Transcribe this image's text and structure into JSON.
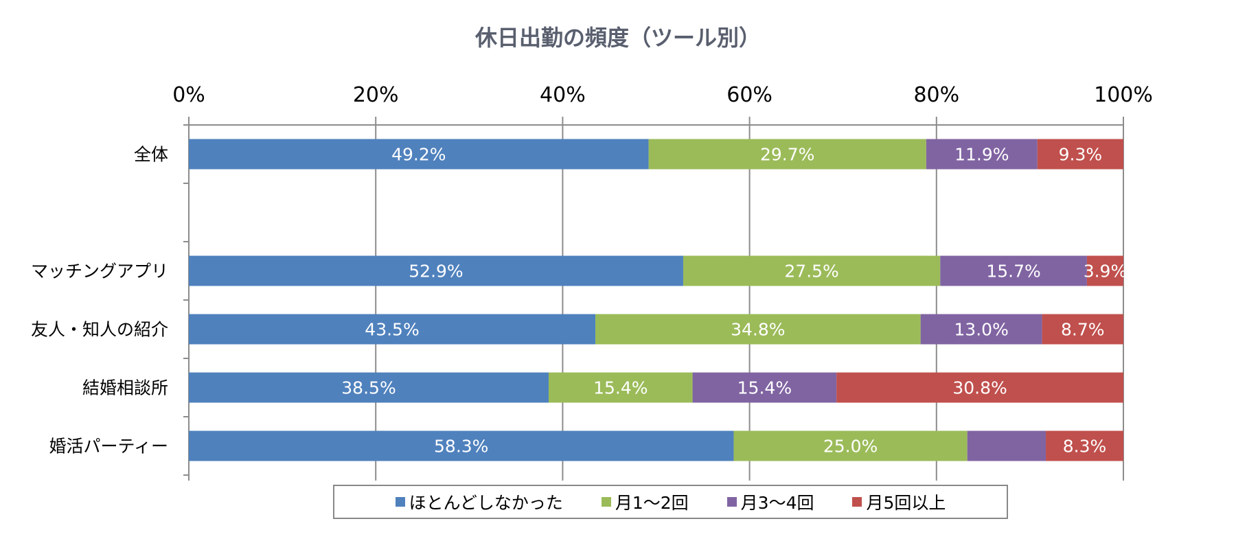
{
  "chart_data": {
    "type": "bar",
    "orientation": "horizontal",
    "stacked": "percent",
    "title": "休日出勤の頻度（ツール別）",
    "categories": [
      "全体",
      "",
      "マッチングアプリ",
      "友人・知人の紹介",
      "結婚相談所",
      "婚活パーティー"
    ],
    "xlim": [
      0,
      100
    ],
    "xticks": [
      "0%",
      "20%",
      "40%",
      "60%",
      "80%",
      "100%"
    ],
    "grid": true,
    "legend_position": "bottom",
    "series": [
      {
        "name": "ほとんどしなかった",
        "color": "#4f81bd",
        "values": [
          49.2,
          null,
          52.9,
          43.5,
          38.5,
          58.3
        ],
        "labels": [
          "49.2%",
          "",
          "52.9%",
          "43.5%",
          "38.5%",
          "58.3%"
        ]
      },
      {
        "name": "月1～2回",
        "color": "#9bbb59",
        "values": [
          29.7,
          null,
          27.5,
          34.8,
          15.4,
          25.0
        ],
        "labels": [
          "29.7%",
          "",
          "27.5%",
          "34.8%",
          "15.4%",
          "25.0%"
        ]
      },
      {
        "name": "月3～4回",
        "color": "#8064a2",
        "values": [
          11.9,
          null,
          15.7,
          13.0,
          15.4,
          8.4
        ],
        "labels": [
          "11.9%",
          "",
          "15.7%",
          "13.0%",
          "15.4%",
          ""
        ]
      },
      {
        "name": "月5回以上",
        "color": "#c0504d",
        "values": [
          9.3,
          null,
          3.9,
          8.7,
          30.8,
          8.3
        ],
        "labels": [
          "9.3%",
          "",
          "3.9%",
          "8.7%",
          "30.8%",
          "8.3%"
        ]
      }
    ]
  }
}
